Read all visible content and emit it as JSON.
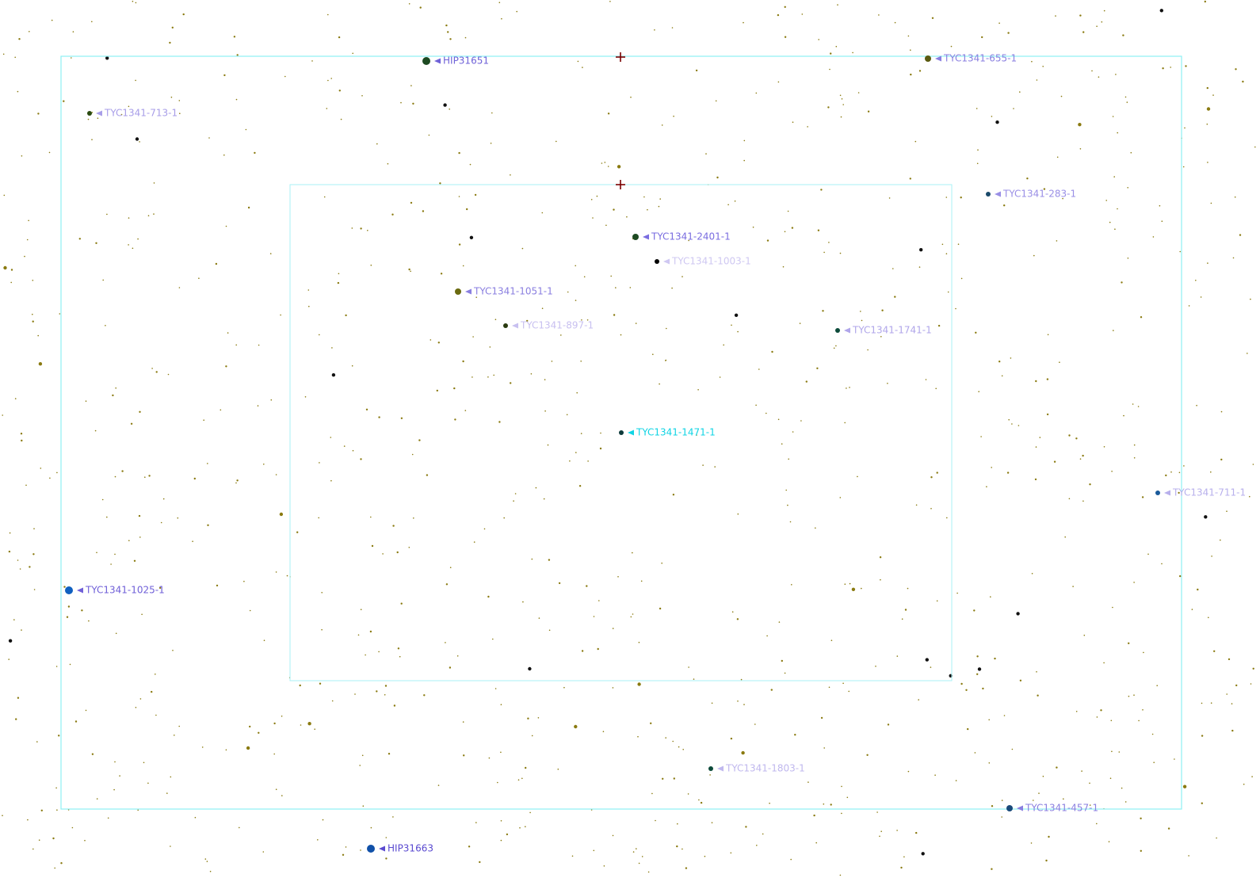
{
  "stars": [
    {
      "label": "HIP31651"
    },
    {
      "label": "TYC1341-655-1"
    },
    {
      "label": "TYC1341-713-1"
    },
    {
      "label": "TYC1341-283-1"
    },
    {
      "label": "TYC1341-2401-1"
    },
    {
      "label": "TYC1341-1003-1"
    },
    {
      "label": "TYC1341-1051-1"
    },
    {
      "label": "TYC1341-897-1"
    },
    {
      "label": "TYC1341-1741-1"
    },
    {
      "label": "TYC1341-1471-1"
    },
    {
      "label": "TYC1341-711-1"
    },
    {
      "label": "TYC1341-1025-1"
    },
    {
      "label": "TYC1341-1803-1"
    },
    {
      "label": "TYC1341-457-1"
    },
    {
      "label": "HIP31663"
    }
  ]
}
